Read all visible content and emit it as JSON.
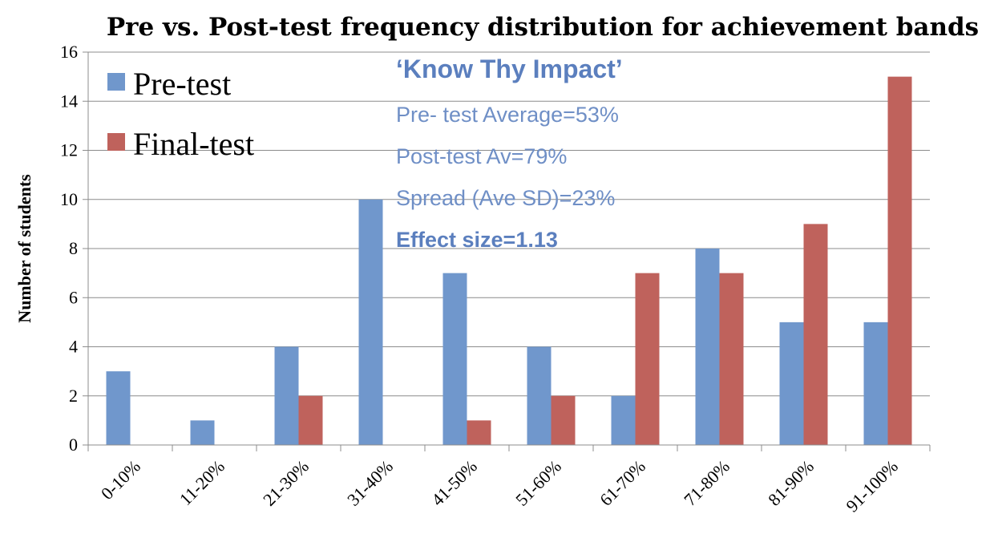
{
  "chart_data": {
    "type": "bar",
    "title": "Pre vs. Post-test frequency distribution for achievement bands",
    "ylabel": "Number of students",
    "xlabel": "",
    "ylim": [
      0,
      16
    ],
    "yticks": [
      0,
      2,
      4,
      6,
      8,
      10,
      12,
      14,
      16
    ],
    "grid": true,
    "legend_position": "top-left",
    "categories": [
      "0-10%",
      "11-20%",
      "21-30%",
      "31-40%",
      "41-50%",
      "51-60%",
      "61-70%",
      "71-80%",
      "81-90%",
      "91-100%"
    ],
    "series": [
      {
        "name": "Pre-test",
        "color": "#7097cc",
        "values": [
          3,
          1,
          4,
          10,
          7,
          4,
          2,
          8,
          5,
          5
        ]
      },
      {
        "name": "Final-test",
        "color": "#bf625c",
        "values": [
          0,
          0,
          2,
          0,
          1,
          2,
          7,
          7,
          9,
          15
        ]
      }
    ],
    "annotations": {
      "heading": "‘Know Thy Impact’",
      "lines": [
        "Pre- test Average=53%",
        "Post-test Av=79%",
        "Spread (Ave SD)=23%"
      ],
      "bold_line": "Effect size=1.13"
    }
  }
}
